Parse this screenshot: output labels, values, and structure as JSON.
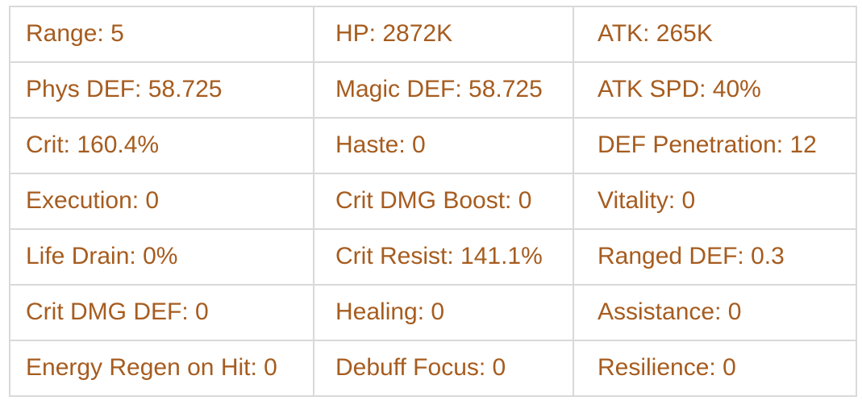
{
  "theme": {
    "text_color": "#a65c1f",
    "border_color": "#d9d9d9",
    "background_color": "#ffffff"
  },
  "stats_table": {
    "rows": [
      {
        "cells": [
          {
            "label": "Range",
            "value": "5",
            "text": "Range: 5"
          },
          {
            "label": "HP",
            "value": "2872K",
            "text": "HP: 2872K"
          },
          {
            "label": "ATK",
            "value": "265K",
            "text": "ATK: 265K"
          }
        ]
      },
      {
        "cells": [
          {
            "label": "Phys DEF",
            "value": "58.725",
            "text": "Phys DEF: 58.725"
          },
          {
            "label": "Magic DEF",
            "value": "58.725",
            "text": "Magic DEF: 58.725"
          },
          {
            "label": "ATK SPD",
            "value": "40%",
            "text": "ATK SPD: 40%"
          }
        ]
      },
      {
        "cells": [
          {
            "label": "Crit",
            "value": "160.4%",
            "text": "Crit: 160.4%"
          },
          {
            "label": "Haste",
            "value": "0",
            "text": "Haste: 0"
          },
          {
            "label": "DEF Penetration",
            "value": "12",
            "text": "DEF Penetration: 12"
          }
        ]
      },
      {
        "cells": [
          {
            "label": "Execution",
            "value": "0",
            "text": "Execution: 0"
          },
          {
            "label": "Crit DMG Boost",
            "value": "0",
            "text": "Crit DMG Boost: 0"
          },
          {
            "label": "Vitality",
            "value": "0",
            "text": "Vitality: 0"
          }
        ]
      },
      {
        "cells": [
          {
            "label": "Life Drain",
            "value": "0%",
            "text": "Life Drain: 0%"
          },
          {
            "label": "Crit Resist",
            "value": "141.1%",
            "text": "Crit Resist: 141.1%"
          },
          {
            "label": "Ranged DEF",
            "value": "0.3",
            "text": "Ranged DEF: 0.3"
          }
        ]
      },
      {
        "cells": [
          {
            "label": "Crit DMG DEF",
            "value": "0",
            "text": "Crit DMG DEF: 0"
          },
          {
            "label": "Healing",
            "value": "0",
            "text": "Healing: 0"
          },
          {
            "label": "Assistance",
            "value": "0",
            "text": "Assistance: 0"
          }
        ]
      },
      {
        "cells": [
          {
            "label": "Energy Regen on Hit",
            "value": "0",
            "text": "Energy Regen on Hit: 0"
          },
          {
            "label": "Debuff Focus",
            "value": "0",
            "text": "Debuff Focus: 0"
          },
          {
            "label": "Resilience",
            "value": "0",
            "text": "Resilience: 0"
          }
        ]
      }
    ]
  }
}
